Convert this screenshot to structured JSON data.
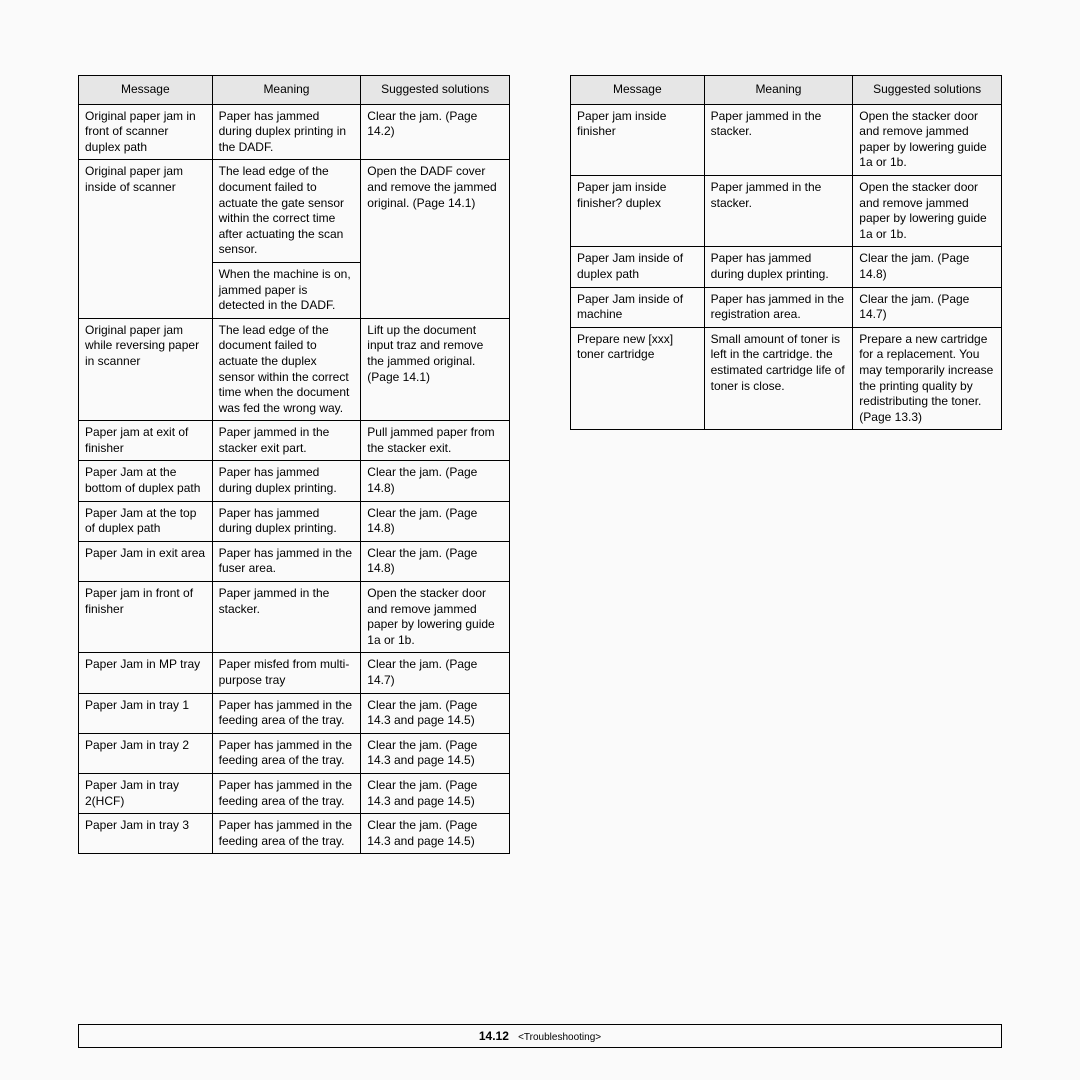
{
  "headers": {
    "message": "Message",
    "meaning": "Meaning",
    "solutions": "Suggested solutions"
  },
  "left_rows": [
    {
      "m": "Original paper jam in front of scanner duplex path",
      "e": "Paper has jammed during duplex printing in the DADF.",
      "s": "Clear the jam. (Page 14.2)"
    },
    {
      "m": "Original paper jam inside of scanner",
      "e": null,
      "e1": "The lead edge of the document failed to actuate the gate sensor within the correct time after actuating the scan sensor.",
      "e2": "When the machine is on, jammed paper is detected in the DADF.",
      "s": "Open the DADF cover and remove the jammed original. (Page 14.1)"
    },
    {
      "m": "Original paper jam while reversing paper in scanner",
      "e": "The lead edge of the document failed to actuate the duplex sensor within the correct time when the document was fed the wrong way.",
      "s": "Lift up the document input traz and remove the jammed original. (Page 14.1)"
    },
    {
      "m": "Paper jam at exit of finisher",
      "e": "Paper jammed in the stacker exit part.",
      "s": "Pull jammed paper from the stacker exit."
    },
    {
      "m": "Paper Jam at the bottom of duplex path",
      "e": "Paper has jammed during duplex printing.",
      "s": "Clear the jam. (Page 14.8)"
    },
    {
      "m": "Paper Jam at the top of duplex path",
      "e": "Paper has jammed during duplex printing.",
      "s": "Clear the jam. (Page 14.8)"
    },
    {
      "m": "Paper Jam in exit area",
      "e": "Paper has jammed in the fuser area.",
      "s": "Clear the jam. (Page 14.8)"
    },
    {
      "m": "Paper jam in front of finisher",
      "e": "Paper jammed in the stacker.",
      "s": "Open the stacker door and remove jammed paper by lowering guide 1a or 1b."
    },
    {
      "m": "Paper Jam in MP tray",
      "e": "Paper misfed from multi-purpose tray",
      "s": "Clear the jam. (Page 14.7)"
    },
    {
      "m": "Paper Jam in tray 1",
      "e": "Paper has jammed in the feeding area of the tray.",
      "s": "Clear the jam. (Page 14.3 and page 14.5)"
    },
    {
      "m": "Paper Jam in tray 2",
      "e": "Paper has jammed in the feeding area of the tray.",
      "s": "Clear the jam. (Page 14.3 and page 14.5)"
    },
    {
      "m": "Paper Jam in tray 2(HCF)",
      "e": "Paper has jammed in the feeding area of the tray.",
      "s": "Clear the jam. (Page 14.3 and page 14.5)"
    },
    {
      "m": "Paper Jam in tray 3",
      "e": "Paper has jammed in the feeding area of the tray.",
      "s": "Clear the jam. (Page 14.3 and page 14.5)"
    }
  ],
  "right_rows": [
    {
      "m": "Paper jam inside finisher",
      "e": "Paper jammed in the stacker.",
      "s": "Open the stacker door and remove jammed paper by lowering guide 1a or 1b."
    },
    {
      "m": "Paper jam inside finisher? duplex",
      "e": "Paper jammed in the stacker.",
      "s": "Open the stacker door and remove jammed paper by lowering guide 1a or 1b."
    },
    {
      "m": "Paper Jam inside of duplex path",
      "e": "Paper has jammed during duplex printing.",
      "s": "Clear the jam. (Page 14.8)"
    },
    {
      "m": "Paper Jam inside of machine",
      "e": "Paper has jammed in the registration area.",
      "s": "Clear the jam. (Page 14.7)"
    },
    {
      "m": "Prepare new [xxx] toner cartridge",
      "e": "Small amount of toner is left in the cartridge. the estimated cartridge life of toner is close.",
      "s": "Prepare a new cartridge for a replacement. You may temporarily increase the printing quality by redistributing the toner. (Page 13.3)"
    }
  ],
  "footer": {
    "page": "14.12",
    "section": "<Troubleshooting>"
  }
}
